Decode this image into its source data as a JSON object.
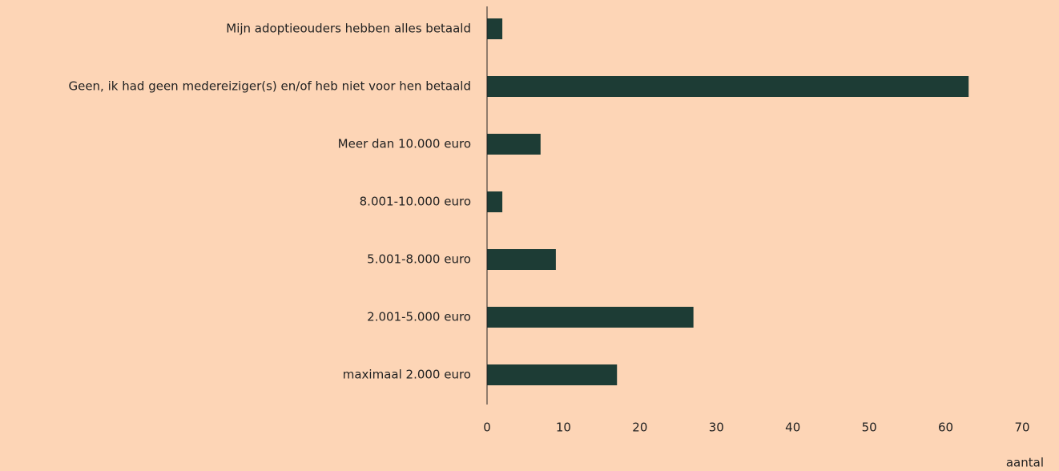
{
  "chart_data": {
    "type": "bar",
    "orientation": "horizontal",
    "x_label": "aantal",
    "categories": [
      "Mijn adoptieouders hebben alles betaald",
      "Geen, ik had geen medereiziger(s) en/of heb niet voor hen betaald",
      "Meer dan 10.000 euro",
      "8.001-10.000 euro",
      "5.001-8.000 euro",
      "2.001-5.000 euro",
      "maximaal 2.000 euro"
    ],
    "values": [
      2,
      63,
      7,
      2,
      9,
      27,
      17
    ],
    "color": "#1d3c35",
    "xlim": [
      0,
      70
    ],
    "xticks": [
      0,
      10,
      20,
      30,
      40,
      50,
      60,
      70
    ],
    "grid": false
  }
}
